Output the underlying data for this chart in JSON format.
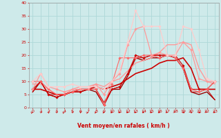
{
  "xlabel": "Vent moyen/en rafales ( km/h )",
  "xlim": [
    -0.5,
    23.5
  ],
  "ylim": [
    0,
    40
  ],
  "xticks": [
    0,
    1,
    2,
    3,
    4,
    5,
    6,
    7,
    8,
    9,
    10,
    11,
    12,
    13,
    14,
    15,
    16,
    17,
    18,
    19,
    20,
    21,
    22,
    23
  ],
  "yticks": [
    0,
    5,
    10,
    15,
    20,
    25,
    30,
    35,
    40
  ],
  "bg_color": "#ceeaea",
  "grid_color": "#add8d8",
  "lines": [
    {
      "x": [
        0,
        1,
        2,
        3,
        4,
        5,
        6,
        7,
        8,
        9,
        10,
        11,
        12,
        13,
        14,
        15,
        16,
        17,
        18,
        19,
        20,
        21,
        22,
        23
      ],
      "y": [
        7,
        10,
        5,
        4,
        5,
        6,
        6,
        7,
        7,
        1,
        7,
        8,
        13,
        20,
        19,
        20,
        20,
        20,
        20,
        16,
        7,
        7,
        7,
        10
      ],
      "color": "#cc0000",
      "lw": 0.8,
      "marker": "D",
      "ms": 1.8,
      "zorder": 5
    },
    {
      "x": [
        0,
        1,
        2,
        3,
        4,
        5,
        6,
        7,
        8,
        9,
        10,
        11,
        12,
        13,
        14,
        15,
        16,
        17,
        18,
        19,
        20,
        21,
        22,
        23
      ],
      "y": [
        6,
        10,
        5,
        5,
        5,
        6,
        6,
        7,
        7,
        2,
        7,
        8,
        13,
        19,
        19,
        20,
        20,
        20,
        19,
        15,
        6,
        6,
        7,
        3
      ],
      "color": "#cc0000",
      "lw": 0.7,
      "marker": null,
      "ms": 0,
      "zorder": 4
    },
    {
      "x": [
        0,
        1,
        2,
        3,
        4,
        5,
        6,
        7,
        8,
        9,
        10,
        11,
        12,
        13,
        14,
        15,
        16,
        17,
        18,
        19,
        20,
        21,
        22,
        23
      ],
      "y": [
        6,
        10,
        5,
        4,
        5,
        6,
        6,
        7,
        6,
        1,
        7,
        7,
        12,
        19,
        18,
        19,
        19,
        20,
        19,
        15,
        6,
        5,
        6,
        3
      ],
      "color": "#990000",
      "lw": 1.0,
      "marker": null,
      "ms": 0,
      "zorder": 3
    },
    {
      "x": [
        0,
        1,
        2,
        3,
        4,
        5,
        6,
        7,
        8,
        9,
        10,
        11,
        12,
        13,
        14,
        15,
        16,
        17,
        18,
        19,
        20,
        21,
        22,
        23
      ],
      "y": [
        10,
        10,
        7,
        5,
        5,
        6,
        7,
        7,
        7,
        1,
        9,
        19,
        19,
        19,
        20,
        20,
        19,
        20,
        19,
        15,
        7,
        6,
        7,
        10
      ],
      "color": "#ff6666",
      "lw": 0.8,
      "marker": "D",
      "ms": 1.8,
      "zorder": 5
    },
    {
      "x": [
        0,
        1,
        2,
        3,
        4,
        5,
        6,
        7,
        8,
        9,
        10,
        11,
        12,
        13,
        14,
        15,
        16,
        17,
        18,
        19,
        20,
        21,
        22,
        23
      ],
      "y": [
        7,
        13,
        8,
        7,
        6,
        7,
        7,
        7,
        9,
        5,
        10,
        13,
        24,
        30,
        31,
        20,
        21,
        20,
        20,
        25,
        22,
        11,
        10,
        10
      ],
      "color": "#ff9999",
      "lw": 0.9,
      "marker": "D",
      "ms": 1.8,
      "zorder": 5
    },
    {
      "x": [
        0,
        1,
        2,
        3,
        4,
        5,
        6,
        7,
        8,
        9,
        10,
        11,
        12,
        13,
        14,
        15,
        16,
        17,
        18,
        19,
        20,
        21,
        22,
        23
      ],
      "y": [
        10,
        13,
        8,
        8,
        8,
        9,
        8,
        8,
        8,
        7,
        10,
        14,
        25,
        37,
        31,
        31,
        31,
        20,
        20,
        31,
        30,
        22,
        11,
        10
      ],
      "color": "#ffcccc",
      "lw": 0.9,
      "marker": "D",
      "ms": 1.8,
      "zorder": 5
    },
    {
      "x": [
        0,
        1,
        2,
        3,
        4,
        5,
        6,
        7,
        8,
        9,
        10,
        11,
        12,
        13,
        14,
        15,
        16,
        17,
        18,
        19,
        20,
        21,
        22,
        23
      ],
      "y": [
        7,
        7,
        6,
        5,
        5,
        6,
        7,
        7,
        8,
        7,
        8,
        9,
        11,
        13,
        14,
        15,
        17,
        18,
        18,
        19,
        15,
        7,
        7,
        7
      ],
      "color": "#cc0000",
      "lw": 1.2,
      "marker": null,
      "ms": 0,
      "zorder": 4
    },
    {
      "x": [
        0,
        1,
        2,
        3,
        4,
        5,
        6,
        7,
        8,
        9,
        10,
        11,
        12,
        13,
        14,
        15,
        16,
        17,
        18,
        19,
        20,
        21,
        22,
        23
      ],
      "y": [
        9,
        9,
        7,
        5,
        5,
        7,
        8,
        8,
        9,
        8,
        10,
        11,
        14,
        17,
        18,
        19,
        21,
        24,
        24,
        25,
        24,
        15,
        10,
        9
      ],
      "color": "#ff9999",
      "lw": 1.0,
      "marker": null,
      "ms": 0,
      "zorder": 3
    }
  ],
  "wind_dirs": [
    225,
    210,
    195,
    210,
    225,
    210,
    210,
    225,
    240,
    255,
    270,
    285,
    285,
    285,
    285,
    285,
    285,
    300,
    315,
    330,
    345,
    330,
    315,
    300
  ]
}
